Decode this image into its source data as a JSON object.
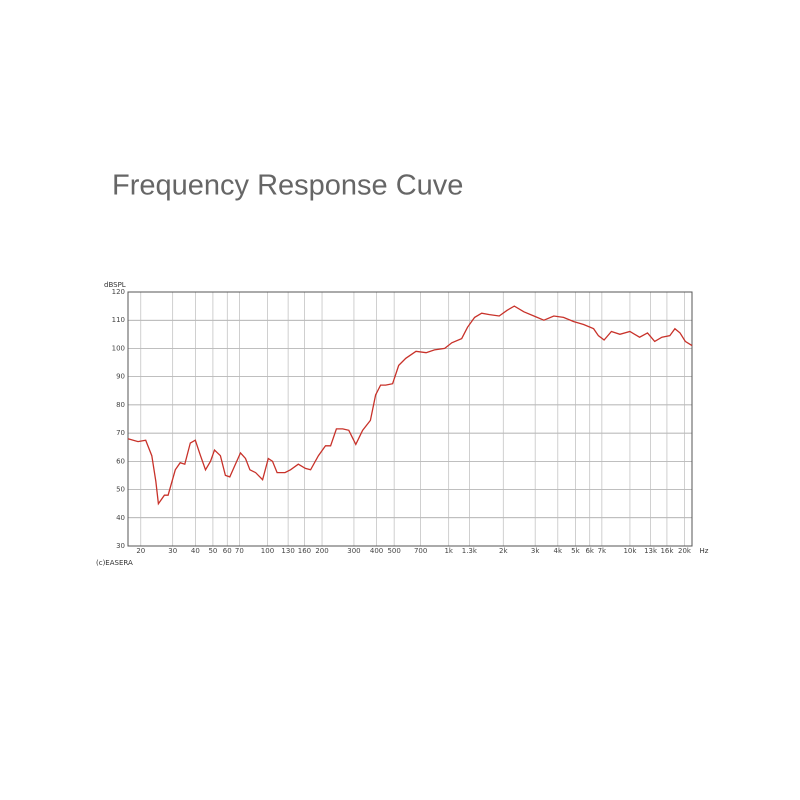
{
  "chart_data": {
    "type": "line",
    "title": "Frequency Response Cuve",
    "y_label": "dBSPL",
    "x_label": "Hz",
    "footnote": "(c)EASERA",
    "xlog": true,
    "grid": true,
    "xlim": [
      17,
      22000
    ],
    "ylim": [
      30,
      120
    ],
    "yticks": [
      30,
      40,
      50,
      60,
      70,
      80,
      90,
      100,
      110,
      120
    ],
    "xticks": [
      20,
      30,
      40,
      50,
      60,
      70,
      100,
      130,
      160,
      200,
      300,
      400,
      500,
      700,
      {
        "value": 1000,
        "label": "1k"
      },
      {
        "value": 1300,
        "label": "1.3k"
      },
      {
        "value": 2000,
        "label": "2k"
      },
      {
        "value": 3000,
        "label": "3k"
      },
      {
        "value": 4000,
        "label": "4k"
      },
      {
        "value": 5000,
        "label": "5k"
      },
      {
        "value": 6000,
        "label": "6k"
      },
      {
        "value": 7000,
        "label": "7k"
      },
      {
        "value": 10000,
        "label": "10k"
      },
      {
        "value": 13000,
        "label": "13k"
      },
      {
        "value": 16000,
        "label": "16k"
      },
      {
        "value": 20000,
        "label": "20k"
      }
    ],
    "series": [
      {
        "color": "#c8322a",
        "x": [
          17,
          19.3,
          21.3,
          23,
          24.2,
          25,
          27,
          28.3,
          31,
          33,
          35,
          37.5,
          40,
          42.7,
          45.5,
          48.5,
          51,
          55,
          58.6,
          62,
          66,
          71,
          75.6,
          80,
          86,
          94,
          101,
          106.6,
          113,
          125,
          134,
          148,
          162,
          173,
          191,
          209,
          223,
          240,
          260,
          281,
          307,
          335,
          370,
          395,
          421,
          449,
          490,
          530,
          580,
          660,
          750,
          835,
          950,
          1040,
          1180,
          1270,
          1390,
          1520,
          1680,
          1900,
          2100,
          2300,
          2600,
          2950,
          3350,
          3800,
          4300,
          4900,
          5550,
          6300,
          6700,
          7200,
          7900,
          8800,
          10000,
          11300,
          12500,
          13700,
          15000,
          16600,
          17700,
          18900,
          20200,
          22000
        ],
        "values": [
          68,
          67,
          67.5,
          62,
          53,
          45,
          48,
          48,
          57,
          59.5,
          59,
          66.5,
          67.5,
          62,
          57,
          60,
          64,
          62,
          55,
          54.5,
          58.5,
          63,
          61,
          57,
          56,
          53.5,
          61,
          60,
          56,
          56,
          57,
          59,
          57.5,
          57,
          62,
          65.5,
          65.5,
          71.5,
          71.5,
          71,
          66,
          71,
          74.5,
          83.5,
          87,
          87,
          87.5,
          94,
          96.5,
          99,
          98.5,
          99.5,
          100,
          102,
          103.5,
          107.5,
          111,
          112.5,
          112,
          111.5,
          113.5,
          115,
          113,
          111.5,
          110,
          111.5,
          111,
          109.5,
          108.5,
          107,
          104.5,
          103,
          106,
          105,
          106,
          104,
          105.5,
          102.5,
          104,
          104.5,
          107,
          105.5,
          102.5,
          101
        ]
      }
    ]
  }
}
